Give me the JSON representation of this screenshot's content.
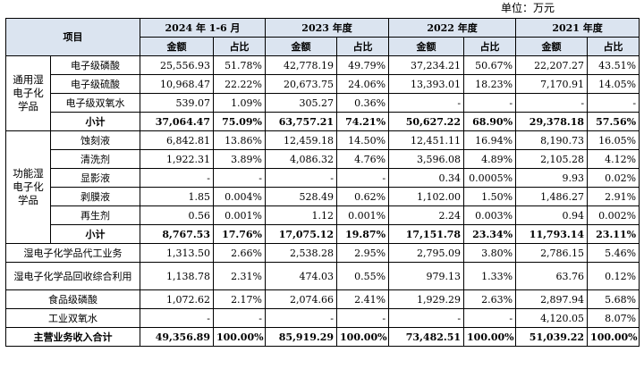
{
  "unit_label": "单位：万元",
  "header": {
    "item": "项目",
    "periods": [
      "2024 年 1-6 月",
      "2023 年度",
      "2022 年度",
      "2021 年度"
    ],
    "amount": "金额",
    "ratio": "占比"
  },
  "groups": [
    {
      "category": "通用湿电子化学品",
      "rows": [
        {
          "name": "电子级磷酸",
          "v": [
            "25,556.93",
            "51.78%",
            "42,778.19",
            "49.79%",
            "37,234.21",
            "50.67%",
            "22,207.27",
            "43.51%"
          ]
        },
        {
          "name": "电子级硫酸",
          "v": [
            "10,968.47",
            "22.22%",
            "20,673.75",
            "24.06%",
            "13,393.01",
            "18.23%",
            "7,170.91",
            "14.05%"
          ]
        },
        {
          "name": "电子级双氧水",
          "v": [
            "539.07",
            "1.09%",
            "305.27",
            "0.36%",
            "-",
            "-",
            "-",
            "-"
          ]
        }
      ],
      "subtotal": {
        "name": "小计",
        "v": [
          "37,064.47",
          "75.09%",
          "63,757.21",
          "74.21%",
          "50,627.22",
          "68.90%",
          "29,378.18",
          "57.56%"
        ]
      }
    },
    {
      "category": "功能湿电子化学品",
      "rows": [
        {
          "name": "蚀刻液",
          "v": [
            "6,842.81",
            "13.86%",
            "12,459.18",
            "14.50%",
            "12,451.11",
            "16.94%",
            "8,190.73",
            "16.05%"
          ]
        },
        {
          "name": "清洗剂",
          "v": [
            "1,922.31",
            "3.89%",
            "4,086.32",
            "4.76%",
            "3,596.08",
            "4.89%",
            "2,105.28",
            "4.12%"
          ]
        },
        {
          "name": "显影液",
          "v": [
            "-",
            "-",
            "-",
            "-",
            "0.34",
            "0.0005%",
            "9.93",
            "0.02%"
          ]
        },
        {
          "name": "剥膜液",
          "v": [
            "1.85",
            "0.004%",
            "528.49",
            "0.62%",
            "1,102.00",
            "1.50%",
            "1,486.27",
            "2.91%"
          ]
        },
        {
          "name": "再生剂",
          "v": [
            "0.56",
            "0.001%",
            "1.12",
            "0.001%",
            "2.24",
            "0.003%",
            "0.94",
            "0.002%"
          ]
        }
      ],
      "subtotal": {
        "name": "小计",
        "v": [
          "8,767.53",
          "17.76%",
          "17,075.12",
          "19.87%",
          "17,151.78",
          "23.34%",
          "11,793.14",
          "23.11%"
        ]
      }
    }
  ],
  "others": [
    {
      "name": "湿电子化学品代工业务",
      "v": [
        "1,313.50",
        "2.66%",
        "2,538.28",
        "2.95%",
        "2,795.09",
        "3.80%",
        "2,786.15",
        "5.46%"
      ]
    },
    {
      "name": "湿电子化学品回收综合利用",
      "v": [
        "1,138.78",
        "2.31%",
        "474.03",
        "0.55%",
        "979.13",
        "1.33%",
        "63.76",
        "0.12%"
      ]
    },
    {
      "name": "食品级磷酸",
      "v": [
        "1,072.62",
        "2.17%",
        "2,074.66",
        "2.41%",
        "1,929.29",
        "2.63%",
        "2,897.94",
        "5.68%"
      ]
    },
    {
      "name": "工业双氧水",
      "v": [
        "-",
        "-",
        "-",
        "-",
        "-",
        "-",
        "4,120.05",
        "8.07%"
      ]
    }
  ],
  "total": {
    "name": "主营业务收入合计",
    "v": [
      "49,356.89",
      "100.00%",
      "85,919.29",
      "100.00%",
      "73,482.51",
      "100.00%",
      "51,039.22",
      "100.00%"
    ]
  }
}
